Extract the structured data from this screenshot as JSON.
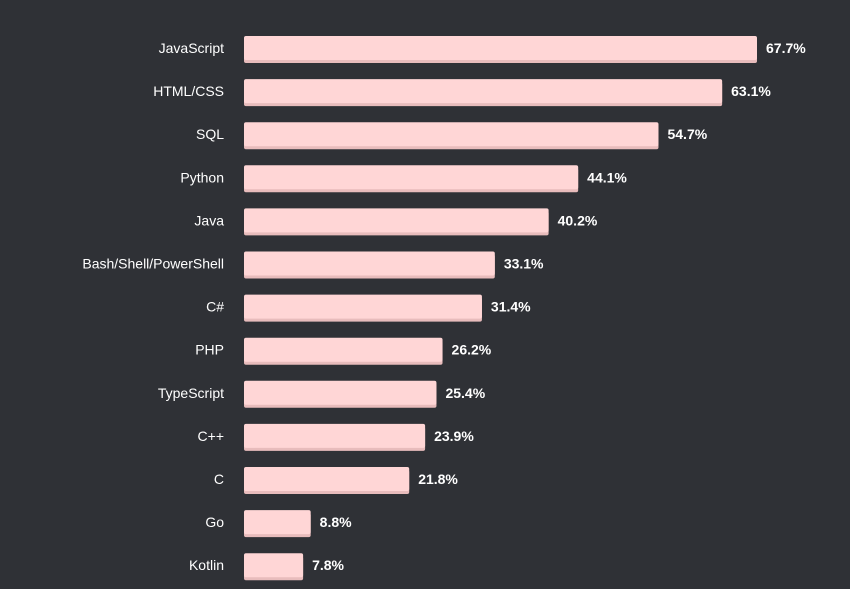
{
  "colors": {
    "background": "#2f3136",
    "bar_fill": "#ffd6d6",
    "bar_shadow": "#e8bcbc",
    "label_text": "#ffffff",
    "value_text": "#ffffff"
  },
  "chart_data": {
    "type": "bar",
    "orientation": "horizontal",
    "title": "",
    "xlabel": "",
    "ylabel": "",
    "unit": "%",
    "xlim": [
      0,
      67.7
    ],
    "grid": false,
    "legend": "none",
    "categories": [
      "JavaScript",
      "HTML/CSS",
      "SQL",
      "Python",
      "Java",
      "Bash/Shell/PowerShell",
      "C#",
      "PHP",
      "TypeScript",
      "C++",
      "C",
      "Go",
      "Kotlin"
    ],
    "values": [
      67.7,
      63.1,
      54.7,
      44.1,
      40.2,
      33.1,
      31.4,
      26.2,
      25.4,
      23.9,
      21.8,
      8.8,
      7.8
    ],
    "value_labels": [
      "67.7%",
      "63.1%",
      "54.7%",
      "44.1%",
      "40.2%",
      "33.1%",
      "31.4%",
      "26.2%",
      "25.4%",
      "23.9%",
      "21.8%",
      "8.8%",
      "7.8%"
    ]
  }
}
